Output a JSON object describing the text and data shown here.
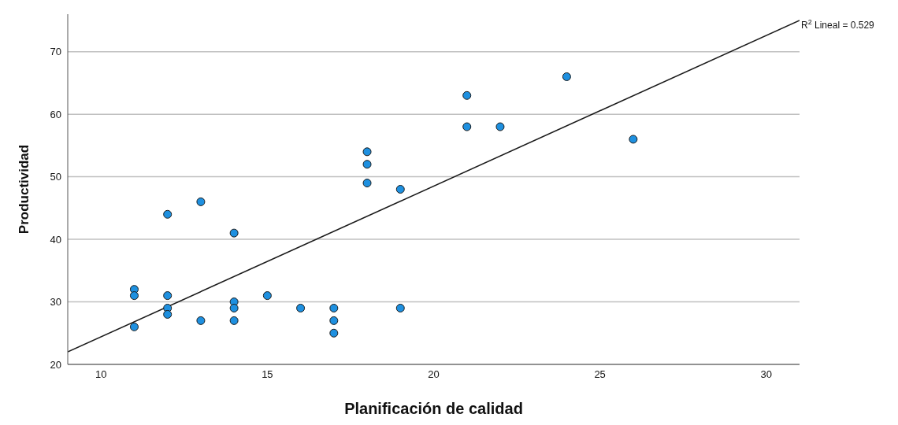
{
  "chart_data": {
    "type": "scatter",
    "xlabel": "Planificación de calidad",
    "ylabel": "Productividad",
    "xlim": [
      9,
      31
    ],
    "xticks": [
      10,
      15,
      20,
      25,
      30
    ],
    "ylim": [
      20,
      76
    ],
    "yticks": [
      20,
      30,
      40,
      50,
      60,
      70
    ],
    "grid": "y",
    "annotations": [
      {
        "text": "R$^{2}$ Lineal = 0.529",
        "x": 31,
        "y": 75
      }
    ],
    "series": [
      {
        "marker": "circle",
        "color": "#1e90e0",
        "x": [
          11,
          11,
          11,
          12,
          12,
          12,
          12,
          13,
          13,
          14,
          14,
          14,
          14,
          15,
          16,
          17,
          17,
          17,
          18,
          18,
          18,
          19,
          19,
          21,
          21,
          22,
          24,
          26
        ],
        "values": [
          32,
          31,
          26,
          44,
          31,
          29,
          28,
          46,
          27,
          41,
          30,
          29,
          27,
          31,
          29,
          29,
          27,
          25,
          54,
          52,
          49,
          48,
          29,
          63,
          58,
          58,
          66,
          56
        ]
      },
      {
        "type": "line",
        "color": "#1a1a1a",
        "x": [
          9,
          31
        ],
        "values": [
          22,
          75
        ]
      }
    ]
  }
}
